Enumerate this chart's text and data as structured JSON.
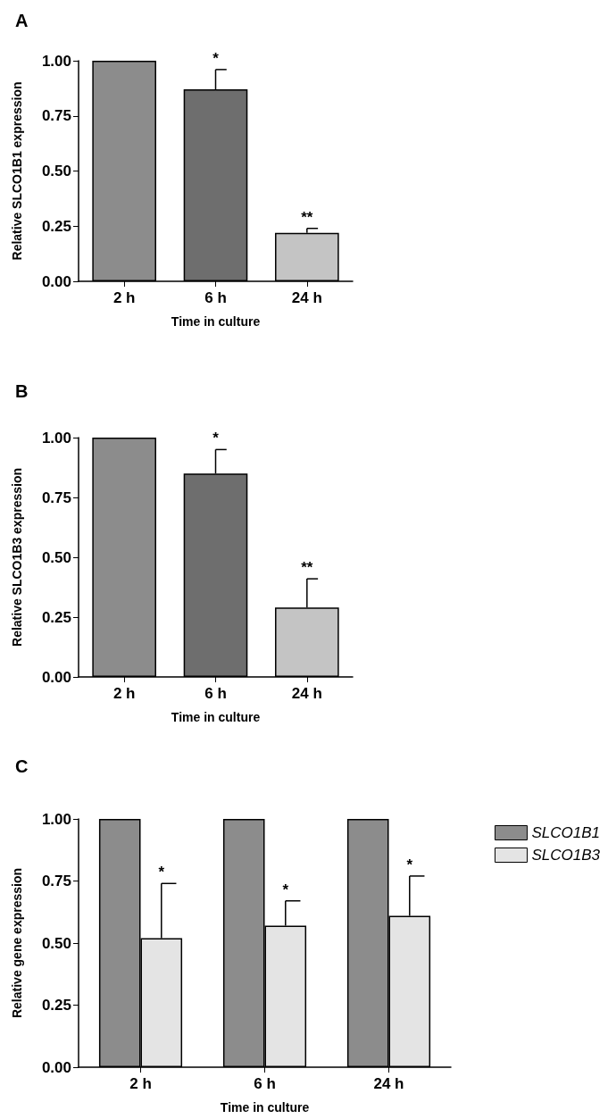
{
  "chart_data": [
    {
      "type": "bar",
      "title": "A",
      "xlabel": "Time in culture",
      "ylabel": "Relative SLCO1B1 expression",
      "categories": [
        "2 h",
        "6 h",
        "24 h"
      ],
      "values": [
        1.0,
        0.87,
        0.22
      ],
      "colors": [
        "#8c8c8c",
        "#6e6e6e",
        "#c4c4c4"
      ],
      "errors": [
        null,
        [
          0.87,
          0.96
        ],
        [
          0.22,
          0.24
        ]
      ],
      "ylim": [
        0,
        1
      ],
      "yticks": [
        {
          "value": 0,
          "label": "0.00"
        },
        {
          "value": 0.25,
          "label": "0.25"
        },
        {
          "value": 0.5,
          "label": "0.50"
        },
        {
          "value": 0.75,
          "label": "0.75"
        },
        {
          "value": 1,
          "label": "1.00"
        }
      ],
      "grid": false,
      "legend": false,
      "annotations": [
        {
          "text": "*",
          "x": "6 h",
          "y": 0.96
        },
        {
          "text": "**",
          "x": "24 h",
          "y": 0.24
        }
      ]
    },
    {
      "type": "bar",
      "title": "B",
      "xlabel": "Time in culture",
      "ylabel": "Relative SLCO1B3 expression",
      "categories": [
        "2 h",
        "6 h",
        "24 h"
      ],
      "values": [
        1.0,
        0.85,
        0.29
      ],
      "colors": [
        "#8c8c8c",
        "#6e6e6e",
        "#c4c4c4"
      ],
      "errors": [
        null,
        [
          0.85,
          0.95
        ],
        [
          0.29,
          0.41
        ]
      ],
      "ylim": [
        0,
        1
      ],
      "yticks": [
        {
          "value": 0,
          "label": "0.00"
        },
        {
          "value": 0.25,
          "label": "0.25"
        },
        {
          "value": 0.5,
          "label": "0.50"
        },
        {
          "value": 0.75,
          "label": "0.75"
        },
        {
          "value": 1,
          "label": "1.00"
        }
      ],
      "grid": false,
      "legend": false,
      "annotations": [
        {
          "text": "*",
          "x": "6 h",
          "y": 0.95
        },
        {
          "text": "**",
          "x": "24 h",
          "y": 0.41
        }
      ]
    },
    {
      "type": "bar",
      "title": "C",
      "xlabel": "Time in culture",
      "ylabel": "Relative gene expression",
      "categories": [
        "2 h",
        "6 h",
        "24 h"
      ],
      "series": [
        {
          "name": "SLCO1B1",
          "color": "#8c8c8c",
          "values": [
            1.0,
            1.0,
            1.0
          ]
        },
        {
          "name": "SLCO1B3",
          "color": "#e4e4e4",
          "values": [
            0.52,
            0.57,
            0.61
          ],
          "errors": [
            [
              0.52,
              0.74
            ],
            [
              0.57,
              0.67
            ],
            [
              0.61,
              0.77
            ]
          ]
        }
      ],
      "ylim": [
        0,
        1
      ],
      "yticks": [
        {
          "value": 0,
          "label": "0.00"
        },
        {
          "value": 0.25,
          "label": "0.25"
        },
        {
          "value": 0.5,
          "label": "0.50"
        },
        {
          "value": 0.75,
          "label": "0.75"
        },
        {
          "value": 1,
          "label": "1.00"
        }
      ],
      "grid": false,
      "legend": "right",
      "annotations": [
        {
          "text": "*",
          "x": "2 h",
          "y": 0.74
        },
        {
          "text": "*",
          "x": "6 h",
          "y": 0.67
        },
        {
          "text": "*",
          "x": "24 h",
          "y": 0.77
        }
      ]
    }
  ]
}
